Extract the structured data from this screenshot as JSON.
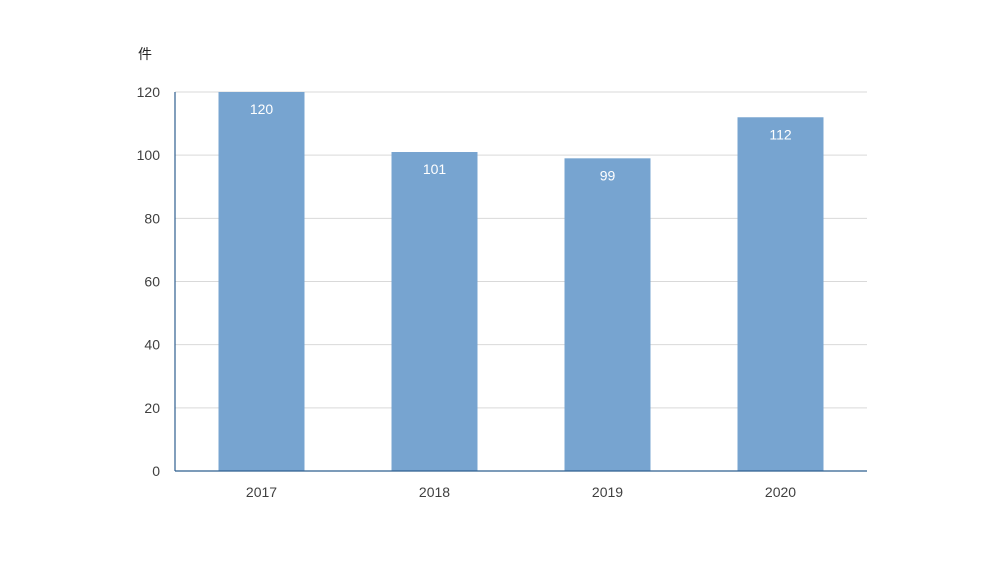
{
  "chart_data": {
    "type": "bar",
    "title": "",
    "xlabel": "",
    "ylabel": "件",
    "categories": [
      "2017",
      "2018",
      "2019",
      "2020"
    ],
    "values": [
      120,
      101,
      99,
      112
    ],
    "ylim": [
      0,
      120
    ],
    "yticks": [
      0,
      20,
      40,
      60,
      80,
      100,
      120
    ],
    "grid": true,
    "legend": "none",
    "colors": {
      "bar": "#77a4d0",
      "grid": "#d9d9d9",
      "axis": "#2f5f8f",
      "data_label": "#ffffff"
    }
  }
}
